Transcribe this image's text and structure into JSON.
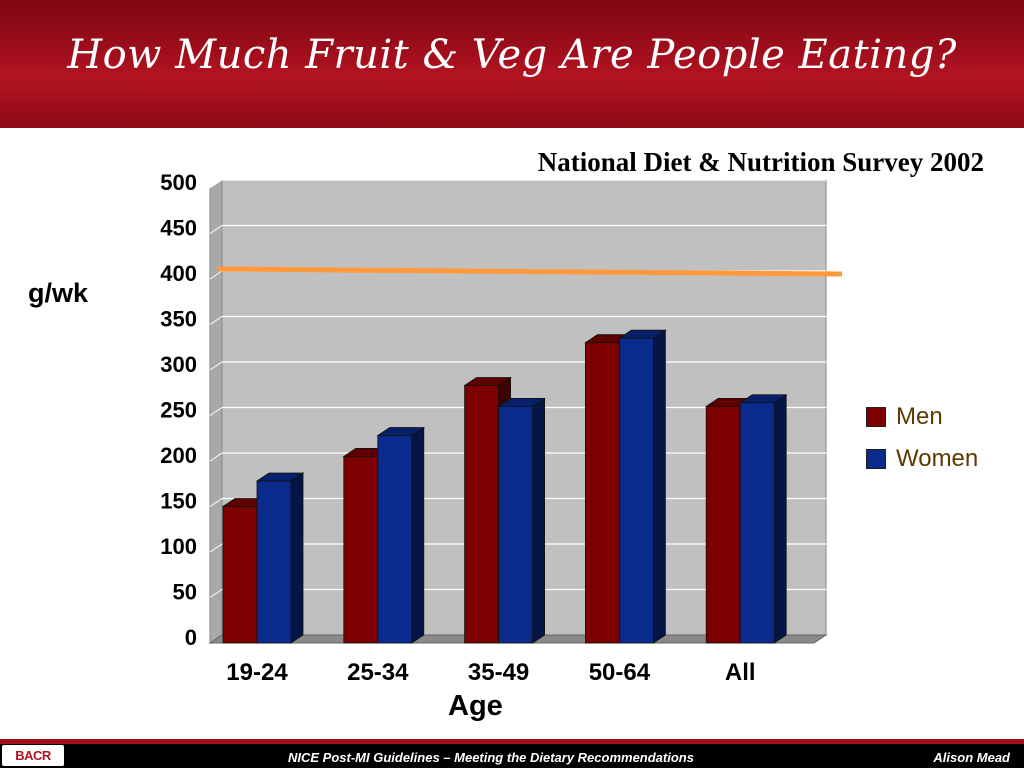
{
  "slide": {
    "title": "How Much Fruit & Veg Are People Eating?",
    "footer_text": "NICE Post-MI Guidelines – Meeting the Dietary Recommendations",
    "footer_author": "Alison Mead",
    "logo_text": "BACR"
  },
  "colors": {
    "header": "#a40f1d",
    "men": "#7c0000",
    "women": "#0a2a8c",
    "target_line": "#ff9a3c",
    "plot_bg": "#c0c0c0"
  },
  "chart_data": {
    "type": "bar",
    "title": "National Diet & Nutrition Survey 2002",
    "xlabel": "Age",
    "ylabel": "g/wk",
    "categories": [
      "19-24",
      "25-34",
      "35-49",
      "50-64",
      "All"
    ],
    "series": [
      {
        "name": "Men",
        "values": [
          150,
          205,
          283,
          330,
          260
        ]
      },
      {
        "name": "Women",
        "values": [
          178,
          228,
          260,
          335,
          264
        ]
      }
    ],
    "ylim": [
      0,
      500
    ],
    "yticks": [
      "0",
      "50",
      "100",
      "150",
      "200",
      "250",
      "300",
      "350",
      "400",
      "450",
      "500"
    ],
    "reference_line": 400,
    "grid": true,
    "legend_position": "right",
    "style": "3d"
  }
}
